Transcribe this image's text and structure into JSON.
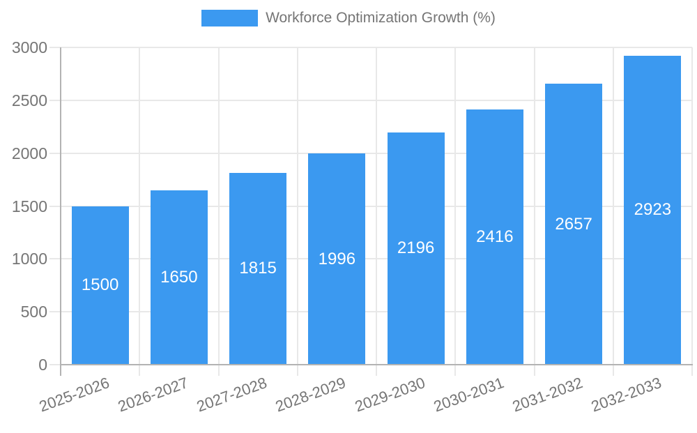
{
  "legend": {
    "items": [
      {
        "label": "Workforce Optimization Growth (%)",
        "color": "#3b99f0"
      }
    ]
  },
  "chart_data": {
    "type": "bar",
    "title": "",
    "categories": [
      "2025-2026",
      "2026-2027",
      "2027-2028",
      "2028-2029",
      "2029-2030",
      "2030-2031",
      "2031-2032",
      "2032-2033"
    ],
    "series": [
      {
        "name": "Workforce Optimization Growth (%)",
        "color": "#3b99f0",
        "values": [
          1500,
          1650,
          1815,
          1996,
          2196,
          2416,
          2657,
          2923
        ]
      }
    ],
    "xlabel": "",
    "ylabel": "",
    "ylim": [
      0,
      3000
    ],
    "yticks": [
      0,
      500,
      1000,
      1500,
      2000,
      2500,
      3000
    ],
    "grid": true,
    "legend_position": "top",
    "value_labels": "inside-center",
    "value_label_color": "#ffffff",
    "tick_label_color": "#757575",
    "grid_color": "#e8e8e8",
    "axis_color": "#b3b3b3",
    "background": "#ffffff"
  }
}
